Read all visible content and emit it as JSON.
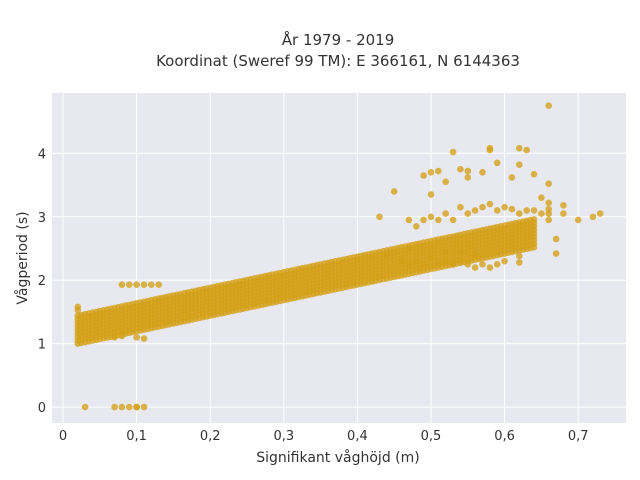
{
  "chart_data": {
    "type": "scatter",
    "title_line1": "År 1979 - 2019",
    "title_line2": "Koordinat (Sweref 99 TM): E 366161, N 6144363",
    "xlabel": "Signifikant våghöjd (m)",
    "ylabel": "Vågperiod (s)",
    "xlim": [
      -0.015,
      0.765
    ],
    "ylim": [
      -0.25,
      4.95
    ],
    "x_ticks": [
      0,
      0.1,
      0.2,
      0.3,
      0.4,
      0.5,
      0.6,
      0.7
    ],
    "x_tick_labels": [
      "0",
      "0,1",
      "0,2",
      "0,3",
      "0,4",
      "0,5",
      "0,6",
      "0,7"
    ],
    "y_ticks": [
      0,
      1,
      2,
      3,
      4
    ],
    "y_tick_labels": [
      "0",
      "1",
      "2",
      "3",
      "4"
    ],
    "grid": true,
    "background_color": "#e8e8f0",
    "marker_color": "#d4a017",
    "main_band": {
      "x_start": 0.02,
      "x_end": 0.64,
      "x_step": 0.005,
      "y_center_at_start": 1.22,
      "y_center_slope": 2.45,
      "y_half_spread": 0.22
    },
    "series": [
      {
        "points": [
          [
            0.02,
            1.58
          ],
          [
            0.02,
            1.53
          ],
          [
            0.03,
            0.0
          ],
          [
            0.07,
            0.0
          ],
          [
            0.08,
            0.0
          ],
          [
            0.09,
            0.0
          ],
          [
            0.1,
            0.0
          ],
          [
            0.11,
            0.0
          ],
          [
            0.1,
            0.0
          ],
          [
            0.08,
            1.93
          ],
          [
            0.09,
            1.93
          ],
          [
            0.1,
            1.93
          ],
          [
            0.11,
            1.93
          ],
          [
            0.12,
            1.93
          ],
          [
            0.13,
            1.93
          ],
          [
            0.07,
            1.1
          ],
          [
            0.08,
            1.12
          ],
          [
            0.1,
            1.1
          ],
          [
            0.11,
            1.08
          ],
          [
            0.43,
            3.0
          ],
          [
            0.45,
            3.4
          ],
          [
            0.49,
            3.65
          ],
          [
            0.5,
            3.7
          ],
          [
            0.5,
            3.35
          ],
          [
            0.51,
            3.72
          ],
          [
            0.52,
            3.55
          ],
          [
            0.53,
            4.02
          ],
          [
            0.54,
            3.75
          ],
          [
            0.55,
            3.72
          ],
          [
            0.55,
            3.62
          ],
          [
            0.57,
            3.7
          ],
          [
            0.58,
            4.05
          ],
          [
            0.58,
            4.08
          ],
          [
            0.59,
            3.85
          ],
          [
            0.61,
            3.62
          ],
          [
            0.62,
            4.08
          ],
          [
            0.63,
            4.05
          ],
          [
            0.62,
            3.82
          ],
          [
            0.64,
            3.67
          ],
          [
            0.66,
            4.75
          ],
          [
            0.66,
            3.52
          ],
          [
            0.65,
            3.3
          ],
          [
            0.66,
            3.22
          ],
          [
            0.66,
            3.12
          ],
          [
            0.66,
            3.05
          ],
          [
            0.68,
            3.18
          ],
          [
            0.68,
            3.05
          ],
          [
            0.67,
            2.65
          ],
          [
            0.67,
            2.42
          ],
          [
            0.7,
            2.95
          ],
          [
            0.72,
            3.0
          ],
          [
            0.73,
            3.05
          ],
          [
            0.47,
            2.95
          ],
          [
            0.48,
            2.85
          ],
          [
            0.49,
            2.95
          ],
          [
            0.5,
            3.0
          ],
          [
            0.51,
            2.95
          ],
          [
            0.52,
            3.05
          ],
          [
            0.53,
            2.95
          ],
          [
            0.54,
            3.15
          ],
          [
            0.55,
            3.05
          ],
          [
            0.56,
            3.1
          ],
          [
            0.57,
            3.15
          ],
          [
            0.58,
            3.2
          ],
          [
            0.59,
            3.1
          ],
          [
            0.6,
            3.15
          ],
          [
            0.61,
            3.12
          ],
          [
            0.62,
            3.05
          ],
          [
            0.63,
            3.1
          ],
          [
            0.64,
            3.1
          ],
          [
            0.65,
            3.05
          ],
          [
            0.66,
            2.95
          ],
          [
            0.46,
            2.3
          ],
          [
            0.47,
            2.25
          ],
          [
            0.48,
            2.3
          ],
          [
            0.49,
            2.25
          ],
          [
            0.5,
            2.35
          ],
          [
            0.51,
            2.25
          ],
          [
            0.52,
            2.3
          ],
          [
            0.53,
            2.25
          ],
          [
            0.54,
            2.3
          ],
          [
            0.55,
            2.25
          ],
          [
            0.56,
            2.2
          ],
          [
            0.57,
            2.25
          ],
          [
            0.58,
            2.2
          ],
          [
            0.59,
            2.25
          ],
          [
            0.6,
            2.3
          ],
          [
            0.62,
            2.38
          ],
          [
            0.62,
            2.28
          ],
          [
            0.5,
            2.5
          ],
          [
            0.52,
            2.45
          ],
          [
            0.54,
            2.45
          ],
          [
            0.56,
            2.4
          ],
          [
            0.44,
            2.4
          ],
          [
            0.42,
            2.35
          ],
          [
            0.47,
            2.5
          ]
        ]
      }
    ]
  }
}
